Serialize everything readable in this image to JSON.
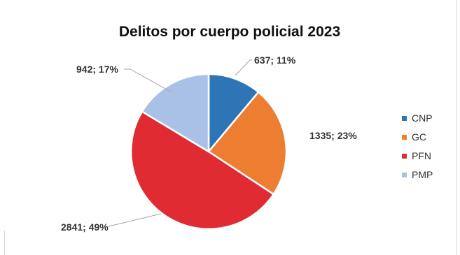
{
  "chart_data": {
    "type": "pie",
    "title": "Delitos por cuerpo policial 2023",
    "legend_position": "right",
    "series": [
      {
        "name": "CNP",
        "value": 637,
        "label": "637; 11%",
        "color": "#2e75b6"
      },
      {
        "name": "GC",
        "value": 1335,
        "label": "1335; 23%",
        "color": "#ed7d31"
      },
      {
        "name": "PFN",
        "value": 2841,
        "label": "2841; 49%",
        "color": "#e02b33"
      },
      {
        "name": "PMP",
        "value": 942,
        "label": "942; 17%",
        "color": "#a9c1e6"
      }
    ]
  }
}
